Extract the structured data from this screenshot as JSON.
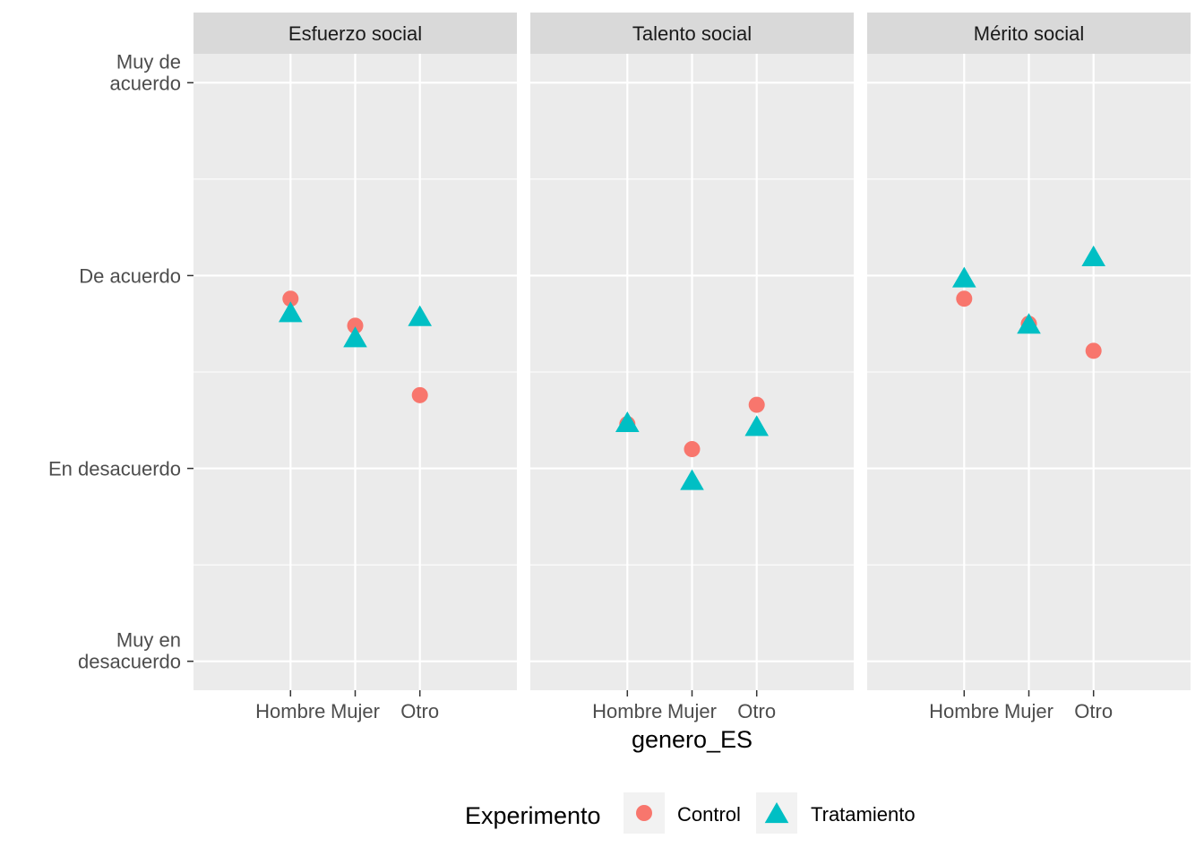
{
  "chart_data": {
    "type": "scatter",
    "facets": [
      "Esfuerzo social",
      "Talento social",
      "Mérito social"
    ],
    "categories": [
      "Hombre",
      "Mujer",
      "Otro"
    ],
    "xlabel": "genero_ES",
    "ylabel": "",
    "ylim": [
      0.85,
      4.15
    ],
    "y_ticks": [
      {
        "value": 1,
        "label": "Muy en desacuerdo",
        "lines": [
          "Muy en",
          "desacuerdo"
        ]
      },
      {
        "value": 2,
        "label": "En desacuerdo",
        "lines": [
          "En desacuerdo"
        ]
      },
      {
        "value": 3,
        "label": "De acuerdo",
        "lines": [
          "De acuerdo"
        ]
      },
      {
        "value": 4,
        "label": "Muy de acuerdo",
        "lines": [
          "Muy de",
          "acuerdo"
        ]
      }
    ],
    "legend": {
      "title": "Experimento",
      "position": "bottom",
      "entries": [
        {
          "name": "Control",
          "shape": "circle",
          "color": "#F8766D"
        },
        {
          "name": "Tratamiento",
          "shape": "triangle",
          "color": "#00BFC4"
        }
      ]
    },
    "series": [
      {
        "name": "Control",
        "color": "#F8766D",
        "shape": "circle",
        "values": {
          "Esfuerzo social": [
            2.88,
            2.74,
            2.38
          ],
          "Talento social": [
            2.23,
            2.1,
            2.33
          ],
          "Mérito social": [
            2.88,
            2.75,
            2.61
          ]
        }
      },
      {
        "name": "Tratamiento",
        "color": "#00BFC4",
        "shape": "triangle",
        "values": {
          "Esfuerzo social": [
            2.81,
            2.68,
            2.79
          ],
          "Talento social": [
            2.24,
            1.94,
            2.22
          ],
          "Mérito social": [
            2.99,
            2.75,
            3.1
          ]
        }
      }
    ],
    "grid": true
  }
}
